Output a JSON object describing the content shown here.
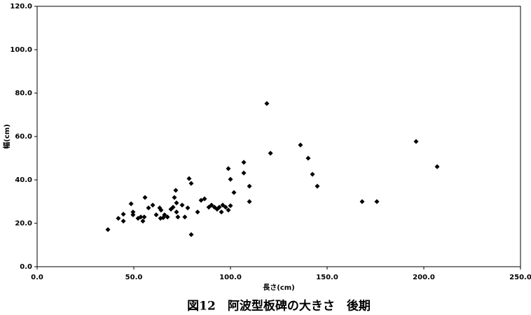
{
  "chart_data": {
    "type": "scatter",
    "title": "図12　阿波型板碑の大きさ　後期",
    "x_label": "長さ(cm)",
    "y_label": "幅(cm)",
    "color": "#000000",
    "xlim": [
      0,
      250
    ],
    "ylim": [
      0,
      120
    ],
    "xticks": [
      {
        "value": 0,
        "label": "0.0"
      },
      {
        "value": 50,
        "label": "50.0"
      },
      {
        "value": 100,
        "label": "100.0"
      },
      {
        "value": 150,
        "label": "150.0"
      },
      {
        "value": 200,
        "label": "200.0"
      },
      {
        "value": 250,
        "label": "250.0"
      }
    ],
    "yticks": [
      {
        "value": 0,
        "label": "0.0"
      },
      {
        "value": 20,
        "label": "20.0"
      },
      {
        "value": 40,
        "label": "40.0"
      },
      {
        "value": 60,
        "label": "60.0"
      },
      {
        "value": 80,
        "label": "80.0"
      },
      {
        "value": 100,
        "label": "100.0"
      },
      {
        "value": 120,
        "label": "120.0"
      }
    ],
    "x": [
      36.6,
      42,
      44.6,
      44.6,
      48.6,
      49.6,
      49.6,
      52.2,
      53.6,
      54.7,
      55.4,
      55.8,
      57.6,
      59.8,
      61.6,
      63.4,
      64.1,
      63.8,
      65.2,
      65.9,
      67.4,
      69.2,
      70.3,
      71,
      71.7,
      72.1,
      72.1,
      72.8,
      75,
      76.4,
      77.9,
      78.6,
      79.7,
      79.7,
      83,
      84.8,
      86.6,
      88.8,
      90.2,
      91.7,
      93.1,
      94.2,
      95.3,
      96,
      97.5,
      98.9,
      98.9,
      100,
      100,
      101.8,
      106.9,
      106.9,
      109.8,
      109.8,
      118.8,
      120.7,
      136.2,
      140.2,
      142.4,
      144.9,
      168.1,
      175.7,
      196,
      206.9
    ],
    "y": [
      17.1,
      22.3,
      24.2,
      21,
      29,
      25.2,
      23.9,
      22.3,
      22.9,
      21,
      22.9,
      31.9,
      27.1,
      28.4,
      23.9,
      27.1,
      26.1,
      22.3,
      22.6,
      23.9,
      22.9,
      26.5,
      27.4,
      31.9,
      35.2,
      29.4,
      25.2,
      22.9,
      28.4,
      22.9,
      27.1,
      40.6,
      38.4,
      14.8,
      25.2,
      30.6,
      31.3,
      27.4,
      28.4,
      27.4,
      26.5,
      27.4,
      25.2,
      28.4,
      27.4,
      45.2,
      26.1,
      40.3,
      28.1,
      34.2,
      48.1,
      43.2,
      37.1,
      30,
      75.2,
      52.3,
      56.1,
      50,
      42.6,
      37.1,
      30,
      30,
      57.7,
      46.1
    ]
  }
}
